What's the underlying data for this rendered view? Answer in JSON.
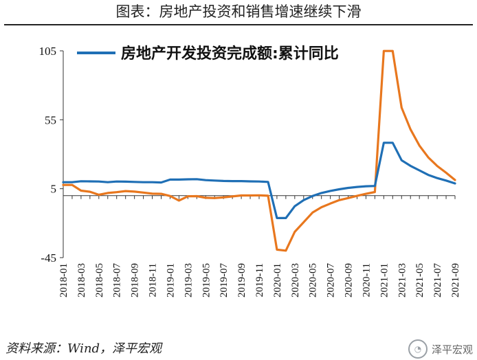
{
  "title": "图表：房地产投资和销售增速继续下滑",
  "source": "资料来源：Wind，泽平宏观",
  "watermark": {
    "icon": "wechat-icon",
    "text": "泽平宏观"
  },
  "colors": {
    "blue": "#1F6FB5",
    "orange": "#E8771E",
    "axis": "#333333"
  },
  "chart_data": {
    "type": "line",
    "ylim": [
      -45,
      105
    ],
    "yticks": [
      105,
      55,
      5,
      -45
    ],
    "x": [
      "2018-01",
      "2018-02",
      "2018-03",
      "2018-04",
      "2018-05",
      "2018-06",
      "2018-07",
      "2018-08",
      "2018-09",
      "2018-10",
      "2018-11",
      "2018-12",
      "2019-01",
      "2019-02",
      "2019-03",
      "2019-04",
      "2019-05",
      "2019-06",
      "2019-07",
      "2019-08",
      "2019-09",
      "2019-10",
      "2019-11",
      "2019-12",
      "2020-01",
      "2020-02",
      "2020-03",
      "2020-04",
      "2020-05",
      "2020-06",
      "2020-07",
      "2020-08",
      "2020-09",
      "2020-10",
      "2020-11",
      "2020-12",
      "2021-01",
      "2021-02",
      "2021-03",
      "2021-04",
      "2021-05",
      "2021-06",
      "2021-07",
      "2021-08",
      "2021-09"
    ],
    "xticks": [
      "2018-01",
      "2018-03",
      "2018-05",
      "2018-07",
      "2018-09",
      "2018-11",
      "2019-01",
      "2019-03",
      "2019-05",
      "2019-07",
      "2019-09",
      "2019-11",
      "2020-01",
      "2020-03",
      "2020-05",
      "2020-07",
      "2020-09",
      "2020-11",
      "2021-01",
      "2021-03",
      "2021-05",
      "2021-07",
      "2021-09"
    ],
    "series": [
      {
        "name": "房地产开发投资完成额:累计同比",
        "color": "#1F6FB5",
        "values": [
          9.7,
          9.7,
          10.4,
          10.3,
          10.2,
          9.7,
          10.2,
          10.1,
          9.9,
          9.7,
          9.7,
          9.5,
          11.6,
          11.6,
          11.8,
          11.9,
          11.2,
          10.9,
          10.6,
          10.5,
          10.5,
          10.3,
          10.2,
          9.9,
          -16.3,
          -16.3,
          -7.7,
          -3.3,
          -0.3,
          1.9,
          3.4,
          4.6,
          5.6,
          6.3,
          6.8,
          7.0,
          38.3,
          38.3,
          25.6,
          21.6,
          18.3,
          15.0,
          12.7,
          10.9,
          8.8
        ]
      },
      {
        "name": "",
        "color": "#E8771E",
        "values": [
          7.7,
          7.7,
          3.6,
          2.8,
          0.6,
          1.9,
          2.5,
          3.3,
          2.9,
          2.2,
          1.4,
          1.3,
          -0.3,
          -3.6,
          -0.5,
          -0.4,
          -1.6,
          -1.8,
          -1.3,
          -0.6,
          0.1,
          0.1,
          0.2,
          -0.1,
          -39.2,
          -39.9,
          -26.3,
          -19.3,
          -12.3,
          -8.4,
          -5.8,
          -3.3,
          -1.8,
          -0.2,
          1.3,
          2.6,
          104.9,
          104.9,
          63.8,
          48.1,
          36.3,
          27.7,
          21.5,
          16.6,
          11.3
        ]
      }
    ],
    "legend": {
      "position": "top-left",
      "label": "房地产开发投资完成额:累计同比"
    }
  }
}
